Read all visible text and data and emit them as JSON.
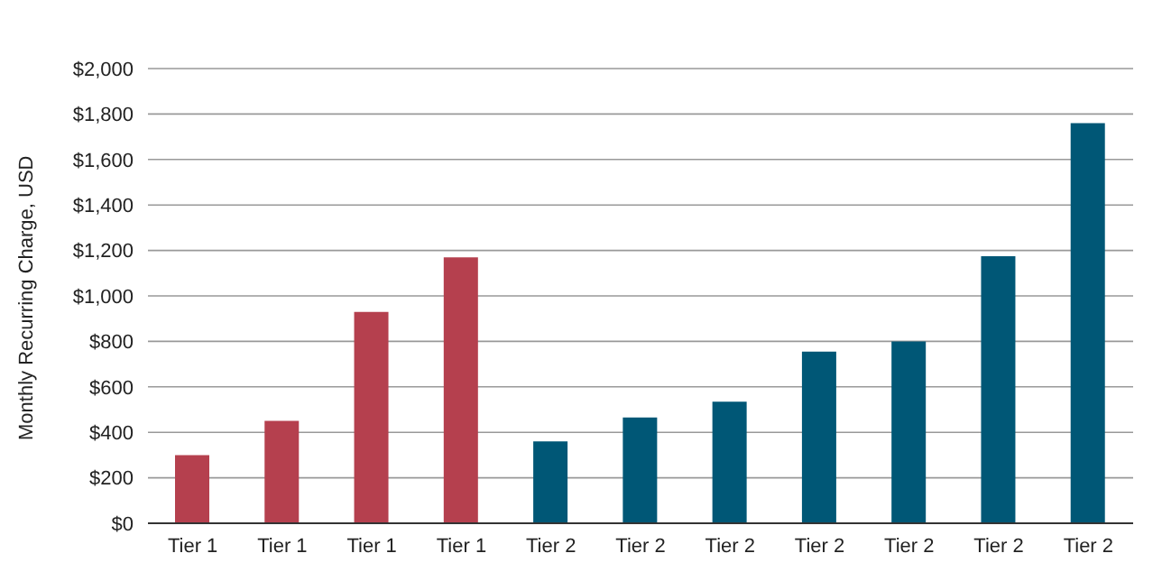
{
  "chart_data": {
    "type": "bar",
    "ylabel": "Monthly Recurring Charge, USD",
    "categories": [
      "Tier 1",
      "Tier 1",
      "Tier 1",
      "Tier 1",
      "Tier 2",
      "Tier 2",
      "Tier 2",
      "Tier 2",
      "Tier 2",
      "Tier 2",
      "Tier 2"
    ],
    "values": [
      300,
      450,
      930,
      1170,
      360,
      465,
      535,
      755,
      800,
      1175,
      1760
    ],
    "colors": [
      "#b5404e",
      "#b5404e",
      "#b5404e",
      "#b5404e",
      "#005776",
      "#005776",
      "#005776",
      "#005776",
      "#005776",
      "#005776",
      "#005776"
    ],
    "ylim": [
      0,
      2000
    ],
    "yticks": [
      {
        "value": 0,
        "label": "$0"
      },
      {
        "value": 200,
        "label": "$200"
      },
      {
        "value": 400,
        "label": "$400"
      },
      {
        "value": 600,
        "label": "$600"
      },
      {
        "value": 800,
        "label": "$800"
      },
      {
        "value": 1000,
        "label": "$1,000"
      },
      {
        "value": 1200,
        "label": "$1,200"
      },
      {
        "value": 1400,
        "label": "$1,400"
      },
      {
        "value": 1600,
        "label": "$1,600"
      },
      {
        "value": 1800,
        "label": "$1,800"
      },
      {
        "value": 2000,
        "label": "$2,000"
      }
    ],
    "grid": "y"
  }
}
